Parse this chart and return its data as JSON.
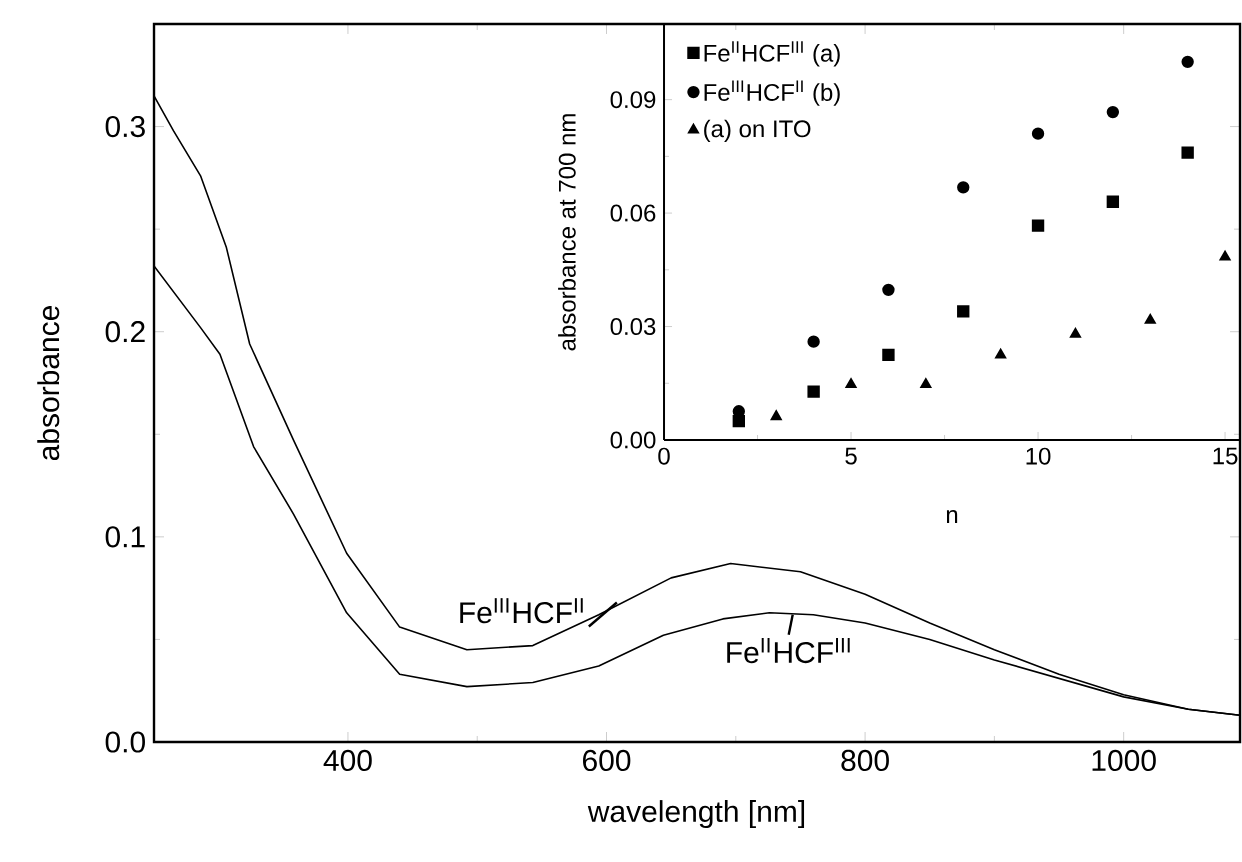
{
  "chart_data": [
    {
      "type": "line",
      "xlabel": "wavelength [nm]",
      "ylabel": "absorbance",
      "xlim": [
        250,
        1090
      ],
      "ylim": [
        0,
        0.35
      ],
      "xticks": [
        400,
        600,
        800,
        1000
      ],
      "yticks": [
        {
          "value": 0,
          "label": "0.0"
        },
        {
          "value": 0.1,
          "label": "0.1"
        },
        {
          "value": 0.2,
          "label": "0.2"
        },
        {
          "value": 0.3,
          "label": "0.3"
        }
      ],
      "line_style": "solid",
      "marker": "none",
      "legend": false,
      "grid": false,
      "series": [
        {
          "color": "#000000",
          "x": [
            250,
            265,
            286,
            306,
            324,
            358,
            399,
            440,
            492,
            543,
            594,
            650,
            696,
            750,
            800,
            850,
            900,
            950,
            1000,
            1050,
            1090
          ],
          "values": [
            0.315,
            0.298,
            0.276,
            0.241,
            0.194,
            0.147,
            0.092,
            0.056,
            0.045,
            0.047,
            0.062,
            0.08,
            0.087,
            0.083,
            0.072,
            0.058,
            0.045,
            0.033,
            0.023,
            0.016,
            0.013
          ]
        },
        {
          "color": "#000000",
          "x": [
            250,
            286,
            301,
            327,
            358,
            399,
            440,
            492,
            543,
            594,
            644,
            690,
            726,
            760,
            800,
            850,
            900,
            950,
            1000,
            1050,
            1090
          ],
          "values": [
            0.232,
            0.202,
            0.189,
            0.144,
            0.111,
            0.063,
            0.033,
            0.027,
            0.029,
            0.037,
            0.052,
            0.06,
            0.063,
            0.062,
            0.058,
            0.05,
            0.04,
            0.031,
            0.022,
            0.016,
            0.013
          ]
        }
      ],
      "annotations": [
        {
          "text": "Fe$^{III}$HCF$^{II}$",
          "x": 608,
          "y": 0.068
        },
        {
          "text": "Fe$^{II}$HCF$^{III}$",
          "x": 744,
          "y": 0.062
        }
      ]
    },
    {
      "type": "scatter",
      "xlabel": "n",
      "ylabel": "absorbance at 700 nm",
      "xlim": [
        0,
        15.4
      ],
      "ylim": [
        0,
        0.11
      ],
      "xticks": [
        0,
        5,
        10,
        15
      ],
      "yticks": [
        {
          "value": 0,
          "label": "0.00"
        },
        {
          "value": 0.03,
          "label": "0.03"
        },
        {
          "value": 0.06,
          "label": "0.06"
        },
        {
          "value": 0.09,
          "label": "0.09"
        }
      ],
      "legend": "top left",
      "grid": false,
      "series": [
        {
          "name": "Fe$^{II}$HCF$^{III}$ (a)",
          "color": "#000000",
          "marker": "square",
          "x": [
            2,
            4,
            6,
            8,
            10,
            12,
            14
          ],
          "values": [
            0.005,
            0.0128,
            0.0225,
            0.034,
            0.0567,
            0.063,
            0.076
          ]
        },
        {
          "name": "Fe$^{III}$HCF$^{II}$ (b)",
          "color": "#000000",
          "marker": "circle",
          "x": [
            2,
            4,
            6,
            8,
            10,
            12,
            14
          ],
          "values": [
            0.0076,
            0.026,
            0.0397,
            0.0668,
            0.081,
            0.0867,
            0.1
          ]
        },
        {
          "name": "(a) on ITO",
          "color": "#000000",
          "marker": "triangle",
          "x": [
            3,
            5,
            7,
            9,
            11,
            13,
            15
          ],
          "values": [
            0.0062,
            0.0147,
            0.0147,
            0.0225,
            0.028,
            0.0317,
            0.0484
          ]
        }
      ]
    }
  ]
}
